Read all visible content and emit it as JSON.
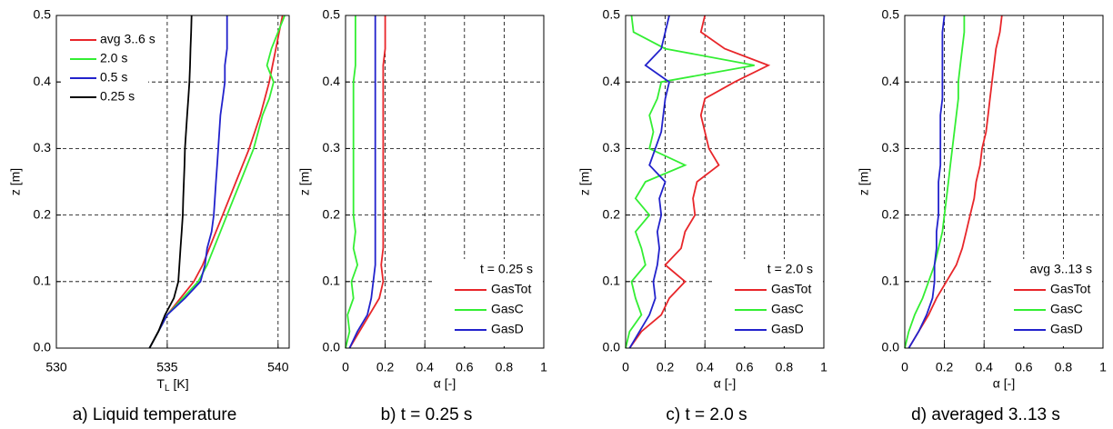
{
  "chart_data": [
    {
      "type": "line",
      "caption": "a) Liquid temperature",
      "xlabel": "T",
      "xlabel_sub": "L",
      "xlabel_unit": "[K]",
      "ylabel": "z [m]",
      "xlim": [
        530,
        540.5
      ],
      "xticks": [
        530,
        535,
        540
      ],
      "ylim": [
        0,
        0.5
      ],
      "yticks": [
        {
          "value": 0,
          "label": "0.0"
        },
        {
          "value": 0.1,
          "label": "0.1"
        },
        {
          "value": 0.2,
          "label": "0.2"
        },
        {
          "value": 0.3,
          "label": "0.3"
        },
        {
          "value": 0.4,
          "label": "0.4"
        },
        {
          "value": 0.5,
          "label": "0.5"
        }
      ],
      "grid": true,
      "legend": "upper left",
      "z": [
        0,
        0.025,
        0.05,
        0.075,
        0.1,
        0.125,
        0.15,
        0.175,
        0.2,
        0.225,
        0.25,
        0.275,
        0.3,
        0.325,
        0.35,
        0.375,
        0.4,
        0.425,
        0.45,
        0.475,
        0.5
      ],
      "series": [
        {
          "name": "avg 3..6 s",
          "color": "#e8262a",
          "values": [
            534.2,
            534.6,
            535.0,
            535.6,
            536.2,
            536.6,
            536.9,
            537.2,
            537.5,
            537.8,
            538.1,
            538.4,
            538.7,
            538.95,
            539.2,
            539.4,
            539.6,
            539.75,
            539.9,
            540.05,
            540.2
          ]
        },
        {
          "name": "2.0 s",
          "color": "#33ee33",
          "values": [
            534.2,
            534.6,
            535.0,
            535.7,
            536.4,
            536.8,
            537.1,
            537.4,
            537.7,
            538.0,
            538.3,
            538.6,
            538.9,
            539.1,
            539.3,
            539.6,
            539.8,
            539.5,
            539.7,
            540.0,
            540.3
          ]
        },
        {
          "name": "0.5 s",
          "color": "#2222cc",
          "values": [
            534.2,
            534.6,
            535.0,
            535.8,
            536.5,
            536.7,
            536.8,
            537.0,
            537.1,
            537.15,
            537.2,
            537.25,
            537.3,
            537.35,
            537.4,
            537.5,
            537.6,
            537.6,
            537.7,
            537.7,
            537.7
          ]
        },
        {
          "name": "0.25 s",
          "color": "#000000",
          "values": [
            534.2,
            534.6,
            534.9,
            535.3,
            535.5,
            535.55,
            535.6,
            535.65,
            535.7,
            535.72,
            535.75,
            535.78,
            535.8,
            535.85,
            535.9,
            535.95,
            536.0,
            536.03,
            536.05,
            536.08,
            536.1
          ]
        }
      ]
    },
    {
      "type": "line",
      "caption": "b) t = 0.25 s",
      "xlabel": "α [-]",
      "ylabel": "z [m]",
      "legend_title": "t = 0.25 s",
      "xlim": [
        0,
        1
      ],
      "xticks": [
        0,
        0.2,
        0.4,
        0.6,
        0.8,
        1
      ],
      "ylim": [
        0,
        0.5
      ],
      "yticks": [
        {
          "value": 0,
          "label": "0.0"
        },
        {
          "value": 0.1,
          "label": "0.1"
        },
        {
          "value": 0.2,
          "label": "0.2"
        },
        {
          "value": 0.3,
          "label": "0.3"
        },
        {
          "value": 0.4,
          "label": "0.4"
        },
        {
          "value": 0.5,
          "label": "0.5"
        }
      ],
      "grid": true,
      "legend": "lower right",
      "z": [
        0,
        0.025,
        0.05,
        0.075,
        0.1,
        0.125,
        0.15,
        0.175,
        0.2,
        0.225,
        0.25,
        0.275,
        0.3,
        0.325,
        0.35,
        0.375,
        0.4,
        0.425,
        0.45,
        0.475,
        0.5
      ],
      "series": [
        {
          "name": "GasTot",
          "color": "#e8262a",
          "values": [
            0.02,
            0.07,
            0.12,
            0.17,
            0.19,
            0.18,
            0.19,
            0.19,
            0.19,
            0.19,
            0.19,
            0.19,
            0.19,
            0.19,
            0.19,
            0.19,
            0.19,
            0.19,
            0.2,
            0.2,
            0.2
          ]
        },
        {
          "name": "GasC",
          "color": "#33ee33",
          "values": [
            0.0,
            0.02,
            0.01,
            0.04,
            0.03,
            0.06,
            0.04,
            0.05,
            0.04,
            0.04,
            0.04,
            0.04,
            0.04,
            0.04,
            0.04,
            0.04,
            0.04,
            0.05,
            0.05,
            0.05,
            0.05
          ]
        },
        {
          "name": "GasD",
          "color": "#2222cc",
          "values": [
            0.02,
            0.06,
            0.11,
            0.13,
            0.14,
            0.15,
            0.15,
            0.15,
            0.15,
            0.15,
            0.15,
            0.15,
            0.15,
            0.15,
            0.15,
            0.15,
            0.15,
            0.15,
            0.15,
            0.15,
            0.15
          ]
        }
      ]
    },
    {
      "type": "line",
      "caption": "c) t = 2.0 s",
      "xlabel": "α [-]",
      "ylabel": "z [m]",
      "legend_title": "t = 2.0 s",
      "xlim": [
        0,
        1
      ],
      "xticks": [
        0,
        0.2,
        0.4,
        0.6,
        0.8,
        1
      ],
      "ylim": [
        0,
        0.5
      ],
      "yticks": [
        {
          "value": 0,
          "label": "0.0"
        },
        {
          "value": 0.1,
          "label": "0.1"
        },
        {
          "value": 0.2,
          "label": "0.2"
        },
        {
          "value": 0.3,
          "label": "0.3"
        },
        {
          "value": 0.4,
          "label": "0.4"
        },
        {
          "value": 0.5,
          "label": "0.5"
        }
      ],
      "grid": true,
      "legend": "lower right",
      "z": [
        0,
        0.025,
        0.05,
        0.075,
        0.1,
        0.125,
        0.15,
        0.175,
        0.2,
        0.225,
        0.25,
        0.275,
        0.3,
        0.325,
        0.35,
        0.375,
        0.4,
        0.425,
        0.45,
        0.475,
        0.5
      ],
      "series": [
        {
          "name": "GasTot",
          "color": "#e8262a",
          "values": [
            0.02,
            0.08,
            0.18,
            0.22,
            0.3,
            0.2,
            0.28,
            0.3,
            0.35,
            0.34,
            0.36,
            0.47,
            0.42,
            0.4,
            0.38,
            0.4,
            0.55,
            0.72,
            0.5,
            0.38,
            0.4
          ]
        },
        {
          "name": "GasC",
          "color": "#33ee33",
          "values": [
            0.0,
            0.02,
            0.08,
            0.05,
            0.03,
            0.1,
            0.08,
            0.05,
            0.12,
            0.05,
            0.1,
            0.3,
            0.12,
            0.14,
            0.12,
            0.16,
            0.18,
            0.65,
            0.2,
            0.04,
            0.03
          ]
        },
        {
          "name": "GasD",
          "color": "#2222cc",
          "values": [
            0.02,
            0.07,
            0.12,
            0.15,
            0.14,
            0.16,
            0.17,
            0.16,
            0.18,
            0.17,
            0.2,
            0.12,
            0.15,
            0.18,
            0.19,
            0.2,
            0.22,
            0.1,
            0.18,
            0.2,
            0.22
          ]
        }
      ]
    },
    {
      "type": "line",
      "caption": "d) averaged 3..13 s",
      "xlabel": "α [-]",
      "ylabel": "z [m]",
      "legend_title": "avg 3..13 s",
      "xlim": [
        0,
        1
      ],
      "xticks": [
        0,
        0.2,
        0.4,
        0.6,
        0.8,
        1
      ],
      "ylim": [
        0,
        0.5
      ],
      "yticks": [
        {
          "value": 0,
          "label": "0.0"
        },
        {
          "value": 0.1,
          "label": "0.1"
        },
        {
          "value": 0.2,
          "label": "0.2"
        },
        {
          "value": 0.3,
          "label": "0.3"
        },
        {
          "value": 0.4,
          "label": "0.4"
        },
        {
          "value": 0.5,
          "label": "0.5"
        }
      ],
      "grid": true,
      "legend": "lower right",
      "z": [
        0,
        0.025,
        0.05,
        0.075,
        0.1,
        0.125,
        0.15,
        0.175,
        0.2,
        0.225,
        0.25,
        0.275,
        0.3,
        0.325,
        0.35,
        0.375,
        0.4,
        0.425,
        0.45,
        0.475,
        0.5
      ],
      "series": [
        {
          "name": "GasTot",
          "color": "#e8262a",
          "values": [
            0.02,
            0.07,
            0.12,
            0.16,
            0.21,
            0.26,
            0.29,
            0.31,
            0.33,
            0.35,
            0.36,
            0.38,
            0.39,
            0.41,
            0.42,
            0.43,
            0.44,
            0.45,
            0.46,
            0.48,
            0.49
          ]
        },
        {
          "name": "GasC",
          "color": "#33ee33",
          "values": [
            0.0,
            0.02,
            0.05,
            0.09,
            0.12,
            0.15,
            0.17,
            0.19,
            0.2,
            0.21,
            0.22,
            0.23,
            0.24,
            0.25,
            0.26,
            0.27,
            0.27,
            0.28,
            0.29,
            0.3,
            0.3
          ]
        },
        {
          "name": "GasD",
          "color": "#2222cc",
          "values": [
            0.02,
            0.07,
            0.11,
            0.14,
            0.15,
            0.15,
            0.16,
            0.16,
            0.17,
            0.17,
            0.17,
            0.18,
            0.18,
            0.18,
            0.18,
            0.19,
            0.19,
            0.19,
            0.19,
            0.19,
            0.2
          ]
        }
      ]
    }
  ]
}
